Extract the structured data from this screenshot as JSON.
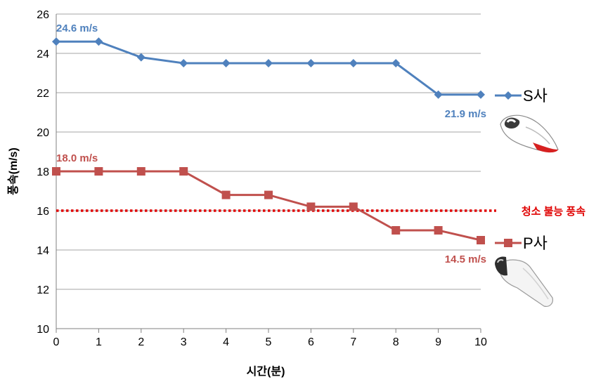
{
  "colors": {
    "s_series": "#4f81bd",
    "p_series": "#c0504d",
    "threshold": "#e00000",
    "grid": "#a6a6a6"
  },
  "chart_data": {
    "type": "line",
    "xlabel": "시간(분)",
    "ylabel": "풍속(m/s)",
    "x": [
      0,
      1,
      2,
      3,
      4,
      5,
      6,
      7,
      8,
      9,
      10
    ],
    "xlim": [
      0,
      10
    ],
    "ylim": [
      10,
      26
    ],
    "yticks": [
      10,
      12,
      14,
      16,
      18,
      20,
      22,
      24,
      26
    ],
    "grid": "horizontal",
    "series": [
      {
        "name": "S사",
        "color": "#4f81bd",
        "marker": "diamond",
        "values": [
          24.6,
          24.6,
          23.8,
          23.5,
          23.5,
          23.5,
          23.5,
          23.5,
          23.5,
          21.9,
          21.9
        ],
        "start_label": "24.6 m/s",
        "end_label": "21.9 m/s"
      },
      {
        "name": "P사",
        "color": "#c0504d",
        "marker": "square",
        "values": [
          18.0,
          18.0,
          18.0,
          18.0,
          16.8,
          16.8,
          16.2,
          16.2,
          15.0,
          15.0,
          14.5
        ],
        "start_label": "18.0 m/s",
        "end_label": "14.5 m/s"
      }
    ],
    "threshold": {
      "value": 16,
      "label": "청소 불능 풍속",
      "style": "dotted",
      "color": "#e00000"
    },
    "legend": "right"
  }
}
